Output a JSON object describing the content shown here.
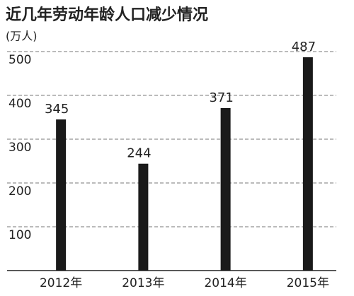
{
  "chart_data": {
    "type": "bar",
    "title": "近几年劳动年龄人口减少情况",
    "unit": "(万人)",
    "categories": [
      "2012年",
      "2013年",
      "2014年",
      "2015年"
    ],
    "values": [
      345,
      244,
      371,
      487
    ],
    "color": "#1a1a1a",
    "ylim": [
      0,
      500
    ],
    "yticks": [
      100,
      200,
      300,
      400,
      500
    ],
    "grid": true
  }
}
